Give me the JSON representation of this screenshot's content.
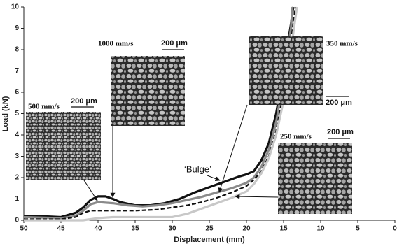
{
  "chart_data": {
    "type": "line",
    "xlabel": "Displacement (mm)",
    "ylabel": "Load (kN)",
    "xlim": [
      50,
      0
    ],
    "ylim": [
      0,
      10
    ],
    "xticks": [
      50,
      45,
      40,
      35,
      30,
      25,
      20,
      15,
      10,
      5,
      0
    ],
    "yticks": [
      0,
      1,
      2,
      3,
      4,
      5,
      6,
      7,
      8,
      9,
      10
    ],
    "series": [
      {
        "name": "1000 mm/s",
        "color": "#111111",
        "width": 3.2,
        "dashed": false,
        "x": [
          50,
          47,
          45,
          43,
          42,
          41,
          40,
          39,
          38,
          37,
          35,
          33,
          31,
          29,
          27,
          25,
          23,
          21,
          20,
          19,
          18,
          17,
          16,
          15,
          14,
          13.7
        ],
        "values": [
          0.2,
          0.18,
          0.15,
          0.35,
          0.6,
          0.95,
          1.12,
          1.12,
          1.0,
          0.85,
          0.7,
          0.7,
          0.8,
          1.0,
          1.3,
          1.55,
          1.8,
          2.05,
          2.15,
          2.3,
          2.8,
          3.6,
          5.0,
          7.0,
          9.2,
          10
        ]
      },
      {
        "name": "500 mm/s",
        "color": "#8a8a8a",
        "width": 3.2,
        "dashed": false,
        "x": [
          50,
          45,
          43,
          42,
          41,
          40,
          38,
          36,
          34,
          32,
          30,
          28,
          26,
          24,
          22,
          20,
          19,
          18,
          17,
          16,
          15,
          14,
          13.8
        ],
        "values": [
          0.15,
          0.1,
          0.2,
          0.45,
          0.75,
          0.85,
          0.8,
          0.7,
          0.65,
          0.7,
          0.8,
          0.95,
          1.1,
          1.3,
          1.5,
          1.75,
          2.0,
          2.5,
          3.3,
          4.6,
          6.6,
          9.0,
          10
        ]
      },
      {
        "name": "350 mm/s",
        "color": "#111111",
        "width": 2.2,
        "dashed": true,
        "x": [
          50,
          45,
          43,
          42,
          41,
          38,
          35,
          32,
          30,
          28,
          26,
          24,
          22,
          20,
          19,
          18,
          17,
          16,
          15,
          14,
          13.4
        ],
        "values": [
          0.05,
          0.05,
          0.15,
          0.35,
          0.45,
          0.45,
          0.45,
          0.5,
          0.6,
          0.7,
          0.85,
          1.05,
          1.3,
          1.6,
          1.9,
          2.3,
          3.0,
          4.2,
          6.0,
          8.4,
          10
        ]
      },
      {
        "name": "250 mm/s",
        "color": "#c8c8c8",
        "width": 3.2,
        "dashed": false,
        "x": [
          50,
          42,
          40,
          38,
          35,
          32,
          30,
          28,
          26,
          24,
          22,
          20,
          19,
          18,
          17,
          16,
          15,
          14,
          13.2
        ],
        "values": [
          0.0,
          0.0,
          0.1,
          0.15,
          0.15,
          0.15,
          0.15,
          0.3,
          0.55,
          0.8,
          1.05,
          1.35,
          1.7,
          2.2,
          2.9,
          4.0,
          5.6,
          8.0,
          10
        ]
      }
    ],
    "scale_bar_label": [
      "200 μm",
      "200 μm",
      "200 μm",
      "200 μm"
    ],
    "annotation": "‘Bulge’"
  }
}
